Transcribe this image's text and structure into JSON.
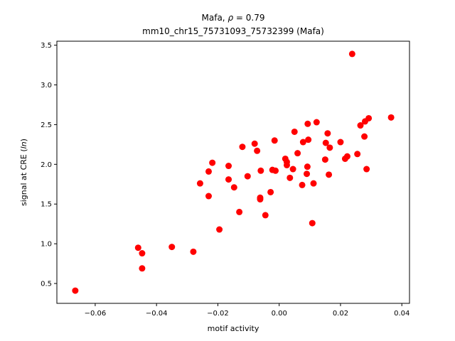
{
  "chart_data": {
    "type": "scatter",
    "title_line1_prefix": "Mafa, ",
    "title_line1_rho": "ρ",
    "title_line1_suffix": " = 0.79",
    "title_line2": "mm10_chr15_75731093_75732399 (Mafa)",
    "xlabel": "motif activity",
    "ylabel_prefix": "signal at CRE (",
    "ylabel_italic": "ln",
    "ylabel_suffix": ")",
    "xlim": [
      -0.0725,
      0.0425
    ],
    "ylim": [
      0.25,
      3.55
    ],
    "xticks": [
      -0.06,
      -0.04,
      -0.02,
      0.0,
      0.02,
      0.04
    ],
    "xtick_labels": [
      "−0.06",
      "−0.04",
      "−0.02",
      "0.00",
      "0.02",
      "0.04"
    ],
    "yticks": [
      0.5,
      1.0,
      1.5,
      2.0,
      2.5,
      3.0,
      3.5
    ],
    "ytick_labels": [
      "0.5",
      "1.0",
      "1.5",
      "2.0",
      "2.5",
      "3.0",
      "3.5"
    ],
    "marker_color": "#ff0000",
    "grid": false,
    "points": [
      {
        "x": -0.0665,
        "y": 0.41
      },
      {
        "x": -0.046,
        "y": 0.95
      },
      {
        "x": -0.0447,
        "y": 0.88
      },
      {
        "x": -0.0447,
        "y": 0.69
      },
      {
        "x": -0.035,
        "y": 0.96
      },
      {
        "x": -0.028,
        "y": 0.9
      },
      {
        "x": -0.0258,
        "y": 1.76
      },
      {
        "x": -0.023,
        "y": 1.91
      },
      {
        "x": -0.023,
        "y": 1.6
      },
      {
        "x": -0.0218,
        "y": 2.02
      },
      {
        "x": -0.0195,
        "y": 1.18
      },
      {
        "x": -0.0165,
        "y": 1.98
      },
      {
        "x": -0.0165,
        "y": 1.81
      },
      {
        "x": -0.0147,
        "y": 1.71
      },
      {
        "x": -0.013,
        "y": 1.4
      },
      {
        "x": -0.012,
        "y": 2.22
      },
      {
        "x": -0.0103,
        "y": 1.85
      },
      {
        "x": -0.008,
        "y": 2.26
      },
      {
        "x": -0.0072,
        "y": 2.17
      },
      {
        "x": -0.0062,
        "y": 1.58
      },
      {
        "x": -0.0062,
        "y": 1.56
      },
      {
        "x": -0.006,
        "y": 1.92
      },
      {
        "x": -0.0045,
        "y": 1.36
      },
      {
        "x": -0.0028,
        "y": 1.65
      },
      {
        "x": -0.0022,
        "y": 1.93
      },
      {
        "x": -0.0015,
        "y": 2.3
      },
      {
        "x": -0.0012,
        "y": 1.92
      },
      {
        "x": 0.002,
        "y": 2.07
      },
      {
        "x": 0.0025,
        "y": 2.03
      },
      {
        "x": 0.0025,
        "y": 1.99
      },
      {
        "x": 0.0035,
        "y": 1.83
      },
      {
        "x": 0.0045,
        "y": 1.94
      },
      {
        "x": 0.005,
        "y": 2.41
      },
      {
        "x": 0.006,
        "y": 2.14
      },
      {
        "x": 0.0075,
        "y": 1.74
      },
      {
        "x": 0.0078,
        "y": 2.28
      },
      {
        "x": 0.009,
        "y": 1.88
      },
      {
        "x": 0.0092,
        "y": 1.97
      },
      {
        "x": 0.0093,
        "y": 2.51
      },
      {
        "x": 0.0095,
        "y": 2.31
      },
      {
        "x": 0.0108,
        "y": 1.26
      },
      {
        "x": 0.0112,
        "y": 1.76
      },
      {
        "x": 0.0122,
        "y": 2.53
      },
      {
        "x": 0.015,
        "y": 2.06
      },
      {
        "x": 0.0152,
        "y": 2.27
      },
      {
        "x": 0.0158,
        "y": 2.39
      },
      {
        "x": 0.0162,
        "y": 1.87
      },
      {
        "x": 0.0165,
        "y": 2.21
      },
      {
        "x": 0.02,
        "y": 2.28
      },
      {
        "x": 0.0215,
        "y": 2.07
      },
      {
        "x": 0.0222,
        "y": 2.1
      },
      {
        "x": 0.0238,
        "y": 3.39
      },
      {
        "x": 0.0255,
        "y": 2.13
      },
      {
        "x": 0.0265,
        "y": 2.49
      },
      {
        "x": 0.0278,
        "y": 2.35
      },
      {
        "x": 0.028,
        "y": 2.54
      },
      {
        "x": 0.0285,
        "y": 1.94
      },
      {
        "x": 0.0292,
        "y": 2.58
      },
      {
        "x": 0.0365,
        "y": 2.59
      }
    ]
  }
}
